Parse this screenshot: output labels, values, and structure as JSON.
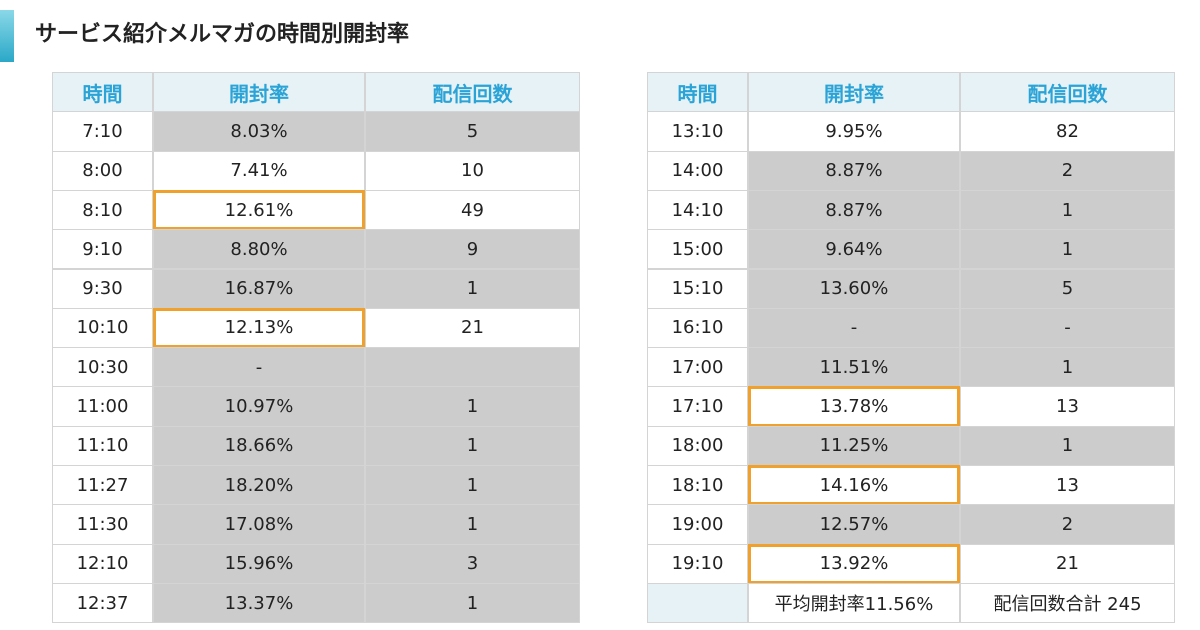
{
  "header": {
    "title": "サービス紹介メルマガの時間別開封率"
  },
  "tables": [
    {
      "columns": [
        "時間",
        "開封率",
        "配信回数"
      ],
      "rows": [
        [
          "7:10",
          "8.03%",
          "5"
        ],
        [
          "8:00",
          "7.41%",
          "10"
        ],
        [
          "8:10",
          "12.61%",
          "49"
        ],
        [
          "9:10",
          "8.80%",
          "9"
        ],
        [
          "9:30",
          "16.87%",
          "1"
        ],
        [
          "10:10",
          "12.13%",
          "21"
        ],
        [
          "10:30",
          "-",
          null
        ],
        [
          "11:00",
          "10.97%",
          "1"
        ],
        [
          "11:10",
          "18.66%",
          "1"
        ],
        [
          "11:27",
          "18.20%",
          "1"
        ],
        [
          "11:30",
          "17.08%",
          "1"
        ],
        [
          "12:10",
          "15.96%",
          "3"
        ],
        [
          "12:37",
          "13.37%",
          "1"
        ]
      ],
      "shaded_rows": [
        0,
        3,
        4,
        6,
        7,
        8,
        9,
        10,
        11,
        12
      ],
      "highlighted_rows": [
        2,
        5
      ]
    },
    {
      "columns": [
        "時間",
        "開封率",
        "配信回数"
      ],
      "rows": [
        [
          "13:10",
          "9.95%",
          "82"
        ],
        [
          "14:00",
          "8.87%",
          "2"
        ],
        [
          "14:10",
          "8.87%",
          "1"
        ],
        [
          "15:00",
          "9.64%",
          "1"
        ],
        [
          "15:10",
          "13.60%",
          "5"
        ],
        [
          "16:10",
          "-",
          "-"
        ],
        [
          "17:00",
          "11.51%",
          "1"
        ],
        [
          "17:10",
          "13.78%",
          "13"
        ],
        [
          "18:00",
          "11.25%",
          "1"
        ],
        [
          "18:10",
          "14.16%",
          "13"
        ],
        [
          "19:00",
          "12.57%",
          "2"
        ],
        [
          "19:10",
          "13.92%",
          "21"
        ]
      ],
      "footer": [
        null,
        "平均開封率11.56%",
        "配信回数合計 245"
      ],
      "shaded_rows": [
        1,
        2,
        3,
        4,
        5,
        6,
        8,
        10
      ],
      "highlighted_rows": [
        7,
        9,
        11
      ]
    }
  ]
}
